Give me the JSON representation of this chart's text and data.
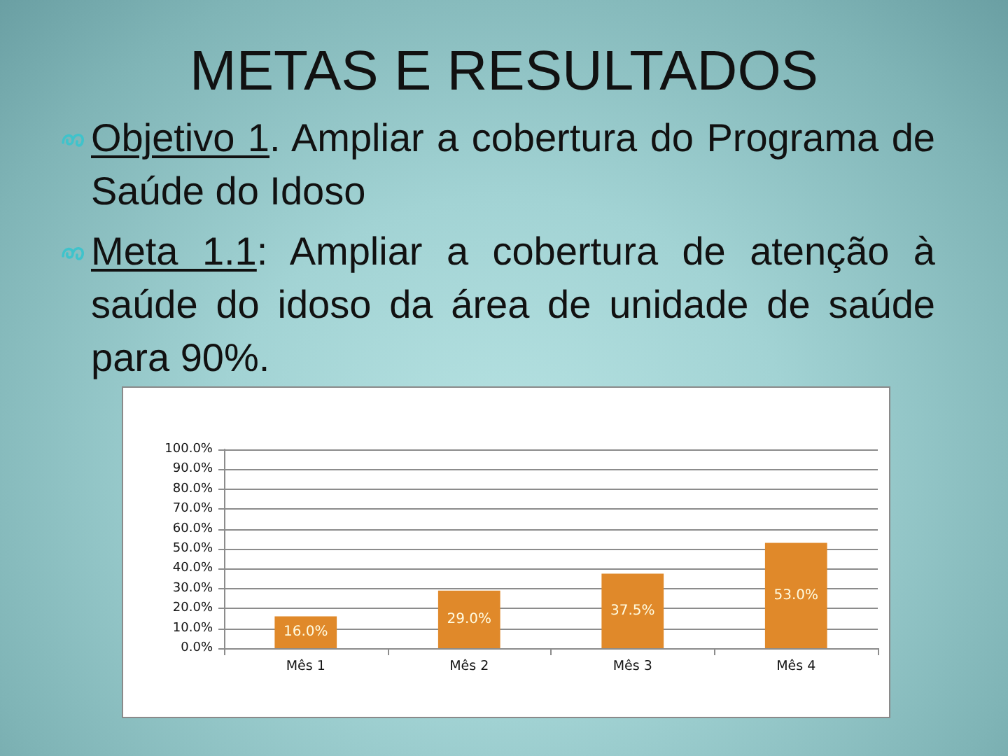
{
  "chart_data": {
    "type": "bar",
    "title": "METAS E RESULTADOS",
    "annotations": [
      "Objetivo 1. Ampliar a cobertura do Programa de Saúde do Idoso",
      "Meta 1.1: Ampliar a cobertura de atenção à saúde do idoso da área de unidade de saúde para 90%."
    ],
    "categories": [
      "Mês 1",
      "Mês 2",
      "Mês 3",
      "Mês 4"
    ],
    "values": [
      16.0,
      29.0,
      37.5,
      53.0
    ],
    "value_labels": [
      "16.0%",
      "29.0%",
      "37.5%",
      "53.0%"
    ],
    "color": "#e0892a",
    "ylim": [
      0,
      100
    ],
    "yticks": [
      {
        "value": 0,
        "label": "0.0%"
      },
      {
        "value": 10,
        "label": "10.0%"
      },
      {
        "value": 20,
        "label": "20.0%"
      },
      {
        "value": 30,
        "label": "30.0%"
      },
      {
        "value": 40,
        "label": "40.0%"
      },
      {
        "value": 50,
        "label": "50.0%"
      },
      {
        "value": 60,
        "label": "60.0%"
      },
      {
        "value": 70,
        "label": "70.0%"
      },
      {
        "value": 80,
        "label": "80.0%"
      },
      {
        "value": 90,
        "label": "90.0%"
      },
      {
        "value": 100,
        "label": "100.0%"
      }
    ],
    "grid": "y"
  }
}
